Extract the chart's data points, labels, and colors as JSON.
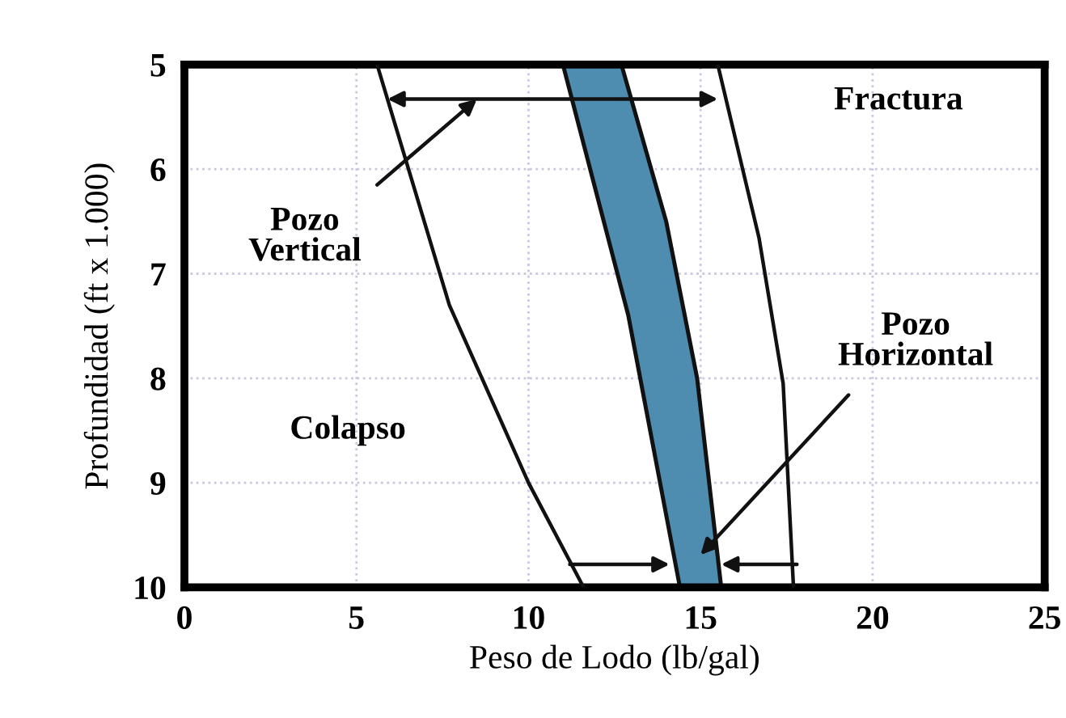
{
  "chart_data": {
    "type": "line",
    "xlabel": "Peso de Lodo (lb/gal)",
    "ylabel": "Profundidad (ft x 1.000)",
    "xlim": [
      0,
      25
    ],
    "xticks": [
      0,
      5,
      10,
      15,
      20,
      25
    ],
    "ylim": [
      10,
      5
    ],
    "yticks": [
      5,
      6,
      7,
      8,
      9,
      10
    ],
    "grid": true,
    "series": [
      {
        "color": "#111111",
        "x": [
          5.6,
          7.7,
          10.0,
          11.6
        ],
        "values": [
          5,
          7.3,
          9.0,
          10
        ]
      },
      {
        "type": "area",
        "color": "#4f8db0",
        "x": [
          11.0,
          12.9,
          14.4,
          15.6,
          14.9,
          14.0,
          12.7
        ],
        "values": [
          5,
          7.4,
          10,
          10,
          8.0,
          6.5,
          5
        ]
      },
      {
        "color": "#111111",
        "x": [
          15.5,
          16.7,
          17.4,
          17.7
        ],
        "values": [
          5,
          6.66,
          8.05,
          10
        ]
      }
    ],
    "annotations": [
      "Fractura",
      "Pozo\nVertical",
      "Pozo\nHorizontal",
      "Colapso"
    ]
  }
}
